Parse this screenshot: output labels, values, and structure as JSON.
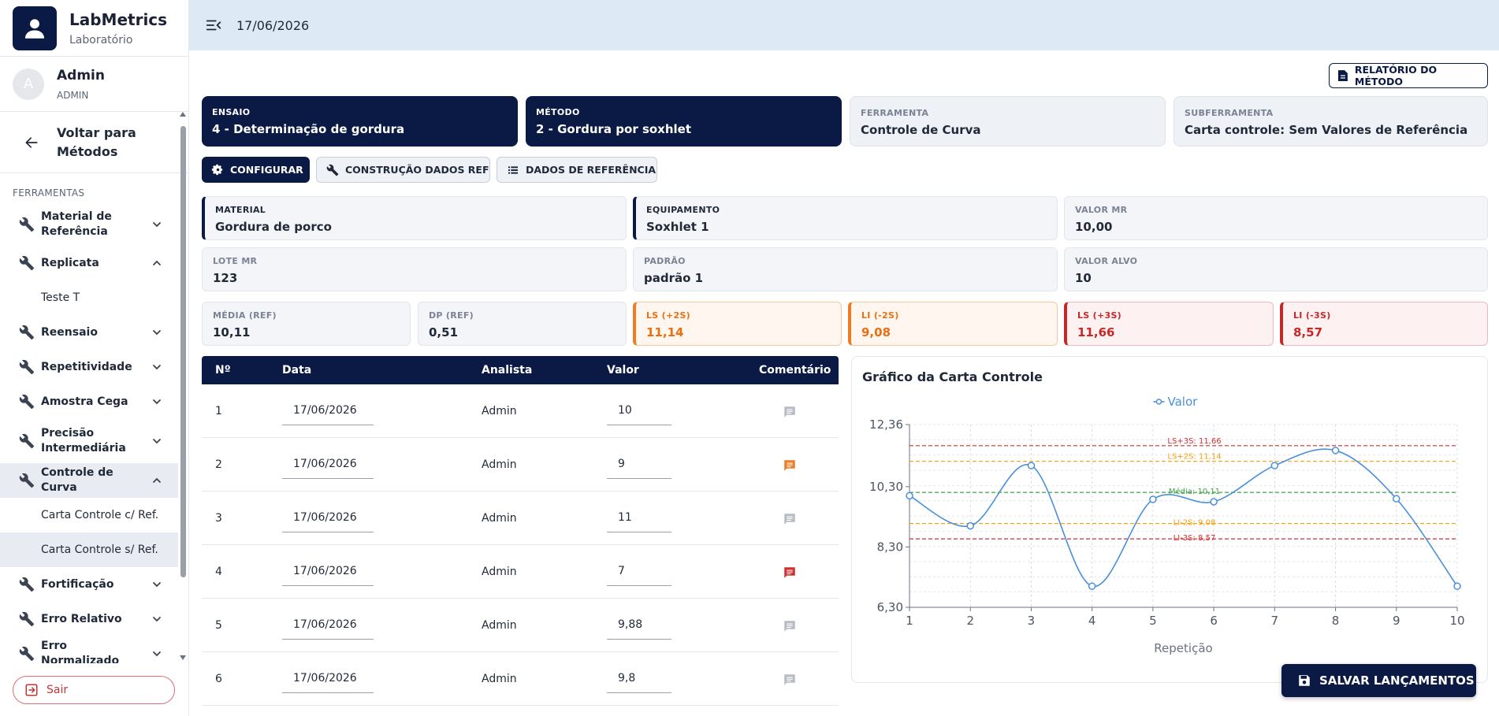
{
  "app": {
    "name": "LabMetrics",
    "subtitle": "Laboratório"
  },
  "user": {
    "initial": "A",
    "name": "Admin",
    "role": "ADMIN"
  },
  "sidebar": {
    "back_label": "Voltar para Métodos",
    "section_label": "FERRAMENTAS",
    "items": [
      {
        "label": "Material de Referência",
        "expanded": false,
        "subitems": []
      },
      {
        "label": "Replicata",
        "expanded": true,
        "subitems": [
          "Teste T"
        ]
      },
      {
        "label": "Reensaio",
        "expanded": false,
        "subitems": []
      },
      {
        "label": "Repetitividade",
        "expanded": false,
        "subitems": []
      },
      {
        "label": "Amostra Cega",
        "expanded": false,
        "subitems": []
      },
      {
        "label": "Precisão Intermediária",
        "expanded": false,
        "subitems": []
      },
      {
        "label": "Controle de Curva",
        "expanded": true,
        "active": true,
        "subitems": [
          "Carta Controle c/ Ref.",
          "Carta Controle s/ Ref."
        ]
      },
      {
        "label": "Fortificação",
        "expanded": false,
        "subitems": []
      },
      {
        "label": "Erro Relativo",
        "expanded": false,
        "subitems": []
      },
      {
        "label": "Erro Normalizado",
        "expanded": false,
        "subitems": []
      }
    ],
    "active_subitem": "Carta Controle s/ Ref.",
    "logout_label": "Sair"
  },
  "topbar": {
    "date": "17/06/2026"
  },
  "report_button": "RELATÓRIO DO MÉTODO",
  "context_cards": [
    {
      "label": "ENSAIO",
      "value": "4 - Determinação de gordura"
    },
    {
      "label": "MÉTODO",
      "value": "2 - Gordura por soxhlet"
    },
    {
      "label": "FERRAMENTA",
      "value": "Controle de Curva"
    },
    {
      "label": "SUBFERRAMENTA",
      "value": "Carta controle: Sem Valores de Referência"
    }
  ],
  "tabs": [
    {
      "label": "CONFIGURAR",
      "icon": "gear-icon",
      "active": true
    },
    {
      "label": "CONSTRUÇÃO DADOS REF",
      "icon": "wrench-icon",
      "active": false
    },
    {
      "label": "DADOS DE REFERÊNCIA",
      "icon": "list-icon",
      "active": false
    }
  ],
  "info": {
    "material": {
      "label": "MATERIAL",
      "value": "Gordura de porco"
    },
    "equipamento": {
      "label": "EQUIPAMENTO",
      "value": "Soxhlet 1"
    },
    "valor_mr": {
      "label": "VALOR MR",
      "value": "10,00"
    },
    "lote_mr": {
      "label": "LOTE MR",
      "value": "123"
    },
    "padrao": {
      "label": "PADRÃO",
      "value": "padrão 1"
    },
    "valor_alvo": {
      "label": "VALOR ALVO",
      "value": "10"
    }
  },
  "stats": [
    {
      "label": "MÉDIA (REF)",
      "value": "10,11",
      "tone": "neutral"
    },
    {
      "label": "DP (REF)",
      "value": "0,51",
      "tone": "neutral"
    },
    {
      "label": "LS (+2S)",
      "value": "11,14",
      "tone": "orange"
    },
    {
      "label": "LI (-2S)",
      "value": "9,08",
      "tone": "orange"
    },
    {
      "label": "LS (+3S)",
      "value": "11,66",
      "tone": "red"
    },
    {
      "label": "LI (-3S)",
      "value": "8,57",
      "tone": "red"
    }
  ],
  "table": {
    "headers": [
      "Nº",
      "Data",
      "Analista",
      "Valor",
      "Comentário"
    ],
    "rows": [
      {
        "n": "1",
        "data": "17/06/2026",
        "analista": "Admin",
        "valor": "10",
        "comment": "none"
      },
      {
        "n": "2",
        "data": "17/06/2026",
        "analista": "Admin",
        "valor": "9",
        "comment": "orange"
      },
      {
        "n": "3",
        "data": "17/06/2026",
        "analista": "Admin",
        "valor": "11",
        "comment": "none"
      },
      {
        "n": "4",
        "data": "17/06/2026",
        "analista": "Admin",
        "valor": "7",
        "comment": "red"
      },
      {
        "n": "5",
        "data": "17/06/2026",
        "analista": "Admin",
        "valor": "9,88",
        "comment": "none"
      },
      {
        "n": "6",
        "data": "17/06/2026",
        "analista": "Admin",
        "valor": "9,8",
        "comment": "none"
      }
    ]
  },
  "colors": {
    "navy": "#0b1a45",
    "line": "#4a90d9",
    "mean": "#43a047",
    "limit2": "#f59e0b",
    "limit3": "#d32f2f",
    "comment_none": "#b7bcc4",
    "comment_orange": "#f07b22",
    "comment_red": "#d32f2f"
  },
  "chart_data": {
    "type": "line",
    "title": "Gráfico da Carta Controle",
    "xlabel": "Repetição",
    "ylabel": "",
    "x": [
      1,
      2,
      3,
      4,
      5,
      6,
      7,
      8,
      9,
      10
    ],
    "series": [
      {
        "name": "Valor",
        "values": [
          10,
          9,
          11,
          7,
          9.88,
          9.8,
          11,
          11.5,
          9.9,
          7
        ]
      }
    ],
    "yticks": [
      "12,36",
      "10,30",
      "8,30",
      "6,30"
    ],
    "ylim": [
      6.3,
      12.36
    ],
    "grid": true,
    "legend": "top-center",
    "reference_lines": [
      {
        "label": "LS+3S: 11,66",
        "value": 11.66,
        "kind": "limit3"
      },
      {
        "label": "LS+2S: 11,14",
        "value": 11.14,
        "kind": "limit2"
      },
      {
        "label": "Média: 10,11",
        "value": 10.11,
        "kind": "mean"
      },
      {
        "label": "LI-2S: 9,08",
        "value": 9.08,
        "kind": "limit2"
      },
      {
        "label": "LI-3S: 8,57",
        "value": 8.57,
        "kind": "limit3"
      }
    ]
  },
  "save_button": "SALVAR LANÇAMENTOS"
}
